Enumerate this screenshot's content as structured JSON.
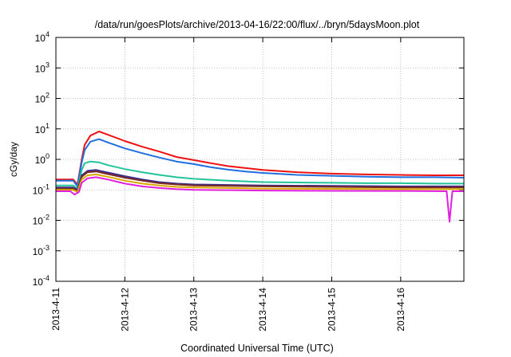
{
  "chart_data": {
    "type": "line",
    "title": "/data/run/goesPlots/archive/2013-04-16/22:00/flux/../bryn/5daysMoon.plot",
    "xlabel": "Coordinated Universal Time (UTC)",
    "ylabel": "cGy/day",
    "yscale": "log",
    "xlim": [
      "2013-04-11T00:00",
      "2013-04-16T22:00"
    ],
    "ylim": [
      0.0001,
      10000
    ],
    "x_ticks": [
      "2013-4-11",
      "2013-4-12",
      "2013-4-13",
      "2013-4-14",
      "2013-4-15",
      "2013-4-16"
    ],
    "y_ticks": [
      {
        "base": "10",
        "exp": "-4",
        "value": 0.0001
      },
      {
        "base": "10",
        "exp": "-3",
        "value": 0.001
      },
      {
        "base": "10",
        "exp": "-2",
        "value": 0.01
      },
      {
        "base": "10",
        "exp": "-1",
        "value": 0.1
      },
      {
        "base": "10",
        "exp": "0",
        "value": 1
      },
      {
        "base": "10",
        "exp": "1",
        "value": 10
      },
      {
        "base": "10",
        "exp": "2",
        "value": 100
      },
      {
        "base": "10",
        "exp": "3",
        "value": 1000
      },
      {
        "base": "10",
        "exp": "4",
        "value": 10000
      }
    ],
    "grid": true,
    "legend": "none",
    "series": [
      {
        "color": "#ee1111",
        "points": [
          [
            "2013-04-11T00:00",
            0.22
          ],
          [
            "2013-04-11T06:00",
            0.22
          ],
          [
            "2013-04-11T07:30",
            0.15
          ],
          [
            "2013-04-11T09:00",
            1.0
          ],
          [
            "2013-04-11T10:00",
            3.0
          ],
          [
            "2013-04-11T12:00",
            6.0
          ],
          [
            "2013-04-11T15:00",
            8.2
          ],
          [
            "2013-04-11T18:00",
            6.5
          ],
          [
            "2013-04-12T00:00",
            4.0
          ],
          [
            "2013-04-12T06:00",
            2.6
          ],
          [
            "2013-04-12T12:00",
            1.8
          ],
          [
            "2013-04-12T18:00",
            1.2
          ],
          [
            "2013-04-13T00:00",
            0.95
          ],
          [
            "2013-04-13T06:00",
            0.75
          ],
          [
            "2013-04-13T12:00",
            0.6
          ],
          [
            "2013-04-13T18:00",
            0.52
          ],
          [
            "2013-04-14T00:00",
            0.45
          ],
          [
            "2013-04-14T12:00",
            0.38
          ],
          [
            "2013-04-15T00:00",
            0.34
          ],
          [
            "2013-04-15T12:00",
            0.32
          ],
          [
            "2013-04-16T00:00",
            0.31
          ],
          [
            "2013-04-16T12:00",
            0.3
          ],
          [
            "2013-04-16T22:00",
            0.3
          ]
        ]
      },
      {
        "color": "#1f6fe0",
        "points": [
          [
            "2013-04-11T00:00",
            0.2
          ],
          [
            "2013-04-11T06:00",
            0.2
          ],
          [
            "2013-04-11T07:30",
            0.13
          ],
          [
            "2013-04-11T09:00",
            0.8
          ],
          [
            "2013-04-11T10:00",
            2.0
          ],
          [
            "2013-04-11T12:00",
            3.8
          ],
          [
            "2013-04-11T15:00",
            4.6
          ],
          [
            "2013-04-11T18:00",
            3.6
          ],
          [
            "2013-04-12T00:00",
            2.3
          ],
          [
            "2013-04-12T06:00",
            1.6
          ],
          [
            "2013-04-12T12:00",
            1.15
          ],
          [
            "2013-04-12T18:00",
            0.85
          ],
          [
            "2013-04-13T00:00",
            0.7
          ],
          [
            "2013-04-13T06:00",
            0.55
          ],
          [
            "2013-04-13T12:00",
            0.46
          ],
          [
            "2013-04-13T18:00",
            0.4
          ],
          [
            "2013-04-14T00:00",
            0.36
          ],
          [
            "2013-04-14T12:00",
            0.31
          ],
          [
            "2013-04-15T00:00",
            0.29
          ],
          [
            "2013-04-15T12:00",
            0.27
          ],
          [
            "2013-04-16T00:00",
            0.26
          ],
          [
            "2013-04-16T12:00",
            0.26
          ],
          [
            "2013-04-16T22:00",
            0.25
          ]
        ]
      },
      {
        "color": "#22c49a",
        "points": [
          [
            "2013-04-11T00:00",
            0.14
          ],
          [
            "2013-04-11T06:00",
            0.14
          ],
          [
            "2013-04-11T07:30",
            0.11
          ],
          [
            "2013-04-11T09:00",
            0.45
          ],
          [
            "2013-04-11T10:00",
            0.75
          ],
          [
            "2013-04-11T12:00",
            0.85
          ],
          [
            "2013-04-11T15:00",
            0.8
          ],
          [
            "2013-04-11T18:00",
            0.65
          ],
          [
            "2013-04-12T00:00",
            0.48
          ],
          [
            "2013-04-12T06:00",
            0.38
          ],
          [
            "2013-04-12T12:00",
            0.31
          ],
          [
            "2013-04-12T18:00",
            0.26
          ],
          [
            "2013-04-13T00:00",
            0.23
          ],
          [
            "2013-04-13T12:00",
            0.2
          ],
          [
            "2013-04-14T00:00",
            0.18
          ],
          [
            "2013-04-14T12:00",
            0.175
          ],
          [
            "2013-04-15T00:00",
            0.17
          ],
          [
            "2013-04-15T12:00",
            0.165
          ],
          [
            "2013-04-16T00:00",
            0.165
          ],
          [
            "2013-04-16T12:00",
            0.16
          ],
          [
            "2013-04-16T22:00",
            0.16
          ]
        ]
      },
      {
        "color": "#3a2a8c",
        "points": [
          [
            "2013-04-11T00:00",
            0.12
          ],
          [
            "2013-04-11T06:00",
            0.12
          ],
          [
            "2013-04-11T07:30",
            0.1
          ],
          [
            "2013-04-11T09:00",
            0.3
          ],
          [
            "2013-04-11T11:00",
            0.42
          ],
          [
            "2013-04-11T14:00",
            0.45
          ],
          [
            "2013-04-11T18:00",
            0.37
          ],
          [
            "2013-04-12T00:00",
            0.28
          ],
          [
            "2013-04-12T06:00",
            0.22
          ],
          [
            "2013-04-12T12:00",
            0.18
          ],
          [
            "2013-04-12T18:00",
            0.16
          ],
          [
            "2013-04-13T00:00",
            0.15
          ],
          [
            "2013-04-13T12:00",
            0.145
          ],
          [
            "2013-04-14T00:00",
            0.14
          ],
          [
            "2013-04-15T00:00",
            0.135
          ],
          [
            "2013-04-16T00:00",
            0.13
          ],
          [
            "2013-04-16T22:00",
            0.13
          ]
        ]
      },
      {
        "color": "#7a2a20",
        "points": [
          [
            "2013-04-11T00:00",
            0.11
          ],
          [
            "2013-04-11T06:00",
            0.11
          ],
          [
            "2013-04-11T07:30",
            0.09
          ],
          [
            "2013-04-11T09:00",
            0.27
          ],
          [
            "2013-04-11T11:00",
            0.38
          ],
          [
            "2013-04-11T14:00",
            0.4
          ],
          [
            "2013-04-11T18:00",
            0.33
          ],
          [
            "2013-04-12T00:00",
            0.25
          ],
          [
            "2013-04-12T06:00",
            0.2
          ],
          [
            "2013-04-12T12:00",
            0.165
          ],
          [
            "2013-04-12T18:00",
            0.15
          ],
          [
            "2013-04-13T00:00",
            0.14
          ],
          [
            "2013-04-13T12:00",
            0.135
          ],
          [
            "2013-04-14T00:00",
            0.13
          ],
          [
            "2013-04-15T00:00",
            0.125
          ],
          [
            "2013-04-16T00:00",
            0.12
          ],
          [
            "2013-04-16T22:00",
            0.12
          ]
        ]
      },
      {
        "color": "#d9a800",
        "points": [
          [
            "2013-04-11T00:00",
            0.1
          ],
          [
            "2013-04-11T06:00",
            0.1
          ],
          [
            "2013-04-11T07:30",
            0.085
          ],
          [
            "2013-04-11T09:00",
            0.22
          ],
          [
            "2013-04-11T11:00",
            0.3
          ],
          [
            "2013-04-11T14:00",
            0.32
          ],
          [
            "2013-04-11T18:00",
            0.27
          ],
          [
            "2013-04-12T00:00",
            0.2
          ],
          [
            "2013-04-12T06:00",
            0.16
          ],
          [
            "2013-04-12T12:00",
            0.14
          ],
          [
            "2013-04-12T18:00",
            0.125
          ],
          [
            "2013-04-13T00:00",
            0.12
          ],
          [
            "2013-04-13T12:00",
            0.115
          ],
          [
            "2013-04-14T00:00",
            0.11
          ],
          [
            "2013-04-15T00:00",
            0.108
          ],
          [
            "2013-04-16T00:00",
            0.105
          ],
          [
            "2013-04-16T22:00",
            0.105
          ]
        ]
      },
      {
        "color": "#e01fe0",
        "points": [
          [
            "2013-04-11T00:00",
            0.09
          ],
          [
            "2013-04-11T05:00",
            0.09
          ],
          [
            "2013-04-11T06:30",
            0.07
          ],
          [
            "2013-04-11T08:00",
            0.085
          ],
          [
            "2013-04-11T09:00",
            0.17
          ],
          [
            "2013-04-11T11:00",
            0.24
          ],
          [
            "2013-04-11T14:00",
            0.26
          ],
          [
            "2013-04-11T18:00",
            0.22
          ],
          [
            "2013-04-12T00:00",
            0.16
          ],
          [
            "2013-04-12T06:00",
            0.13
          ],
          [
            "2013-04-12T12:00",
            0.115
          ],
          [
            "2013-04-12T18:00",
            0.105
          ],
          [
            "2013-04-13T00:00",
            0.1
          ],
          [
            "2013-04-13T12:00",
            0.098
          ],
          [
            "2013-04-14T00:00",
            0.095
          ],
          [
            "2013-04-15T00:00",
            0.093
          ],
          [
            "2013-04-16T00:00",
            0.092
          ],
          [
            "2013-04-16T16:00",
            0.09
          ],
          [
            "2013-04-16T17:00",
            0.009
          ],
          [
            "2013-04-16T18:00",
            0.09
          ],
          [
            "2013-04-16T22:00",
            0.09
          ]
        ]
      }
    ]
  }
}
